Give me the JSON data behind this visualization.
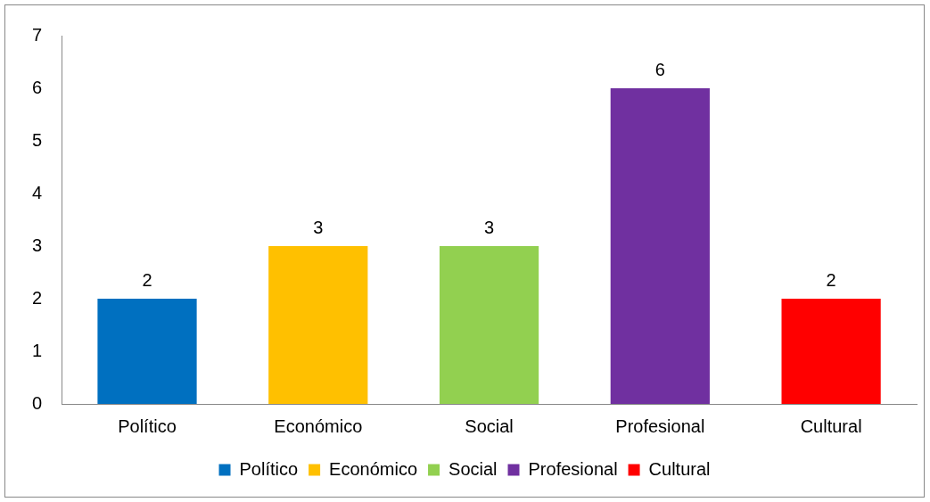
{
  "chart_data": {
    "type": "bar",
    "categories": [
      "Político",
      "Económico",
      "Social",
      "Profesional",
      "Cultural"
    ],
    "series": [
      {
        "name": "Político",
        "color": "#0070c0",
        "values": [
          2,
          null,
          null,
          null,
          null
        ]
      },
      {
        "name": "Económico",
        "color": "#ffc000",
        "values": [
          null,
          3,
          null,
          null,
          null
        ]
      },
      {
        "name": "Social",
        "color": "#92d050",
        "values": [
          null,
          null,
          3,
          null,
          null
        ]
      },
      {
        "name": "Profesional",
        "color": "#7030a0",
        "values": [
          null,
          null,
          null,
          6,
          null
        ]
      },
      {
        "name": "Cultural",
        "color": "#ff0000",
        "values": [
          null,
          null,
          null,
          null,
          2
        ]
      }
    ],
    "ylim": [
      0,
      7
    ],
    "yticks": [
      0,
      1,
      2,
      3,
      4,
      5,
      6,
      7
    ],
    "grid": false,
    "legend": "bottom",
    "data_labels": true
  }
}
